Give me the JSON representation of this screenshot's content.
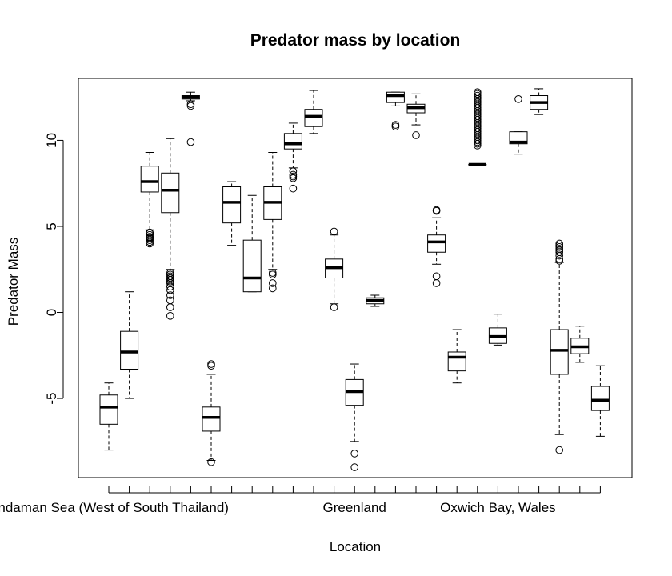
{
  "chart_data": {
    "type": "boxplot",
    "title": "Predator mass by location",
    "xlabel": "Location",
    "ylabel": "Predator Mass",
    "ylim": [
      -9.6,
      13.6
    ],
    "y_ticks": [
      -5,
      0,
      5,
      10
    ],
    "x_tick_labels": [
      {
        "index": 1,
        "label": "Andaman Sea (West of South Thailand)"
      },
      {
        "index": 13,
        "label": "Greenland"
      },
      {
        "index": 20,
        "label": "Oxwich Bay, Wales"
      }
    ],
    "boxes": [
      {
        "q1": -6.5,
        "median": -5.5,
        "q3": -4.8,
        "wlo": -8.0,
        "whi": -4.1,
        "outliers": []
      },
      {
        "q1": -3.3,
        "median": -2.3,
        "q3": -1.1,
        "wlo": -5.0,
        "whi": 1.2,
        "outliers": []
      },
      {
        "q1": 7.0,
        "median": 7.6,
        "q3": 8.5,
        "wlo": 4.8,
        "whi": 9.3,
        "outliers": [
          4.0,
          4.1,
          4.2,
          4.3,
          4.35,
          4.4,
          4.5,
          4.6,
          4.65
        ]
      },
      {
        "q1": 5.8,
        "median": 7.1,
        "q3": 8.1,
        "wlo": 2.5,
        "whi": 10.1,
        "outliers": [
          2.3,
          2.2,
          2.1,
          2.0,
          1.9,
          1.8,
          1.7,
          1.5,
          1.3,
          1.0,
          0.7,
          0.3,
          -0.2
        ]
      },
      {
        "q1": 12.4,
        "median": 12.5,
        "q3": 12.6,
        "wlo": 12.3,
        "whi": 12.8,
        "outliers": [
          12.1,
          12.0,
          9.9
        ]
      },
      {
        "q1": -6.9,
        "median": -6.1,
        "q3": -5.5,
        "wlo": -8.6,
        "whi": -3.6,
        "outliers": [
          -3.0,
          -3.1,
          -8.7
        ]
      },
      {
        "q1": 5.2,
        "median": 6.4,
        "q3": 7.3,
        "wlo": 3.9,
        "whi": 7.6,
        "outliers": []
      },
      {
        "q1": 1.2,
        "median": 2.0,
        "q3": 4.2,
        "wlo": 1.2,
        "whi": 6.8,
        "outliers": []
      },
      {
        "q1": 5.4,
        "median": 6.4,
        "q3": 7.3,
        "wlo": 2.5,
        "whi": 9.3,
        "outliers": [
          2.3,
          2.2,
          1.7,
          1.4
        ]
      },
      {
        "q1": 9.5,
        "median": 9.8,
        "q3": 10.4,
        "wlo": 8.4,
        "whi": 11.0,
        "outliers": [
          8.2,
          8.0,
          7.9,
          7.8,
          7.2
        ]
      },
      {
        "q1": 10.8,
        "median": 11.4,
        "q3": 11.8,
        "wlo": 10.4,
        "whi": 12.9,
        "outliers": []
      },
      {
        "q1": 2.0,
        "median": 2.6,
        "q3": 3.1,
        "wlo": 0.5,
        "whi": 4.5,
        "outliers": [
          4.7,
          0.3
        ]
      },
      {
        "q1": -5.4,
        "median": -4.6,
        "q3": -3.9,
        "wlo": -7.5,
        "whi": -3.0,
        "outliers": [
          -8.2,
          -9.0
        ]
      },
      {
        "q1": 0.5,
        "median": 0.7,
        "q3": 0.85,
        "wlo": 0.35,
        "whi": 1.0,
        "outliers": []
      },
      {
        "q1": 12.2,
        "median": 12.6,
        "q3": 12.8,
        "wlo": 12.0,
        "whi": 12.8,
        "outliers": [
          10.9,
          10.8
        ]
      },
      {
        "q1": 11.6,
        "median": 11.9,
        "q3": 12.1,
        "wlo": 10.9,
        "whi": 12.7,
        "outliers": [
          10.3
        ]
      },
      {
        "q1": 3.5,
        "median": 4.1,
        "q3": 4.5,
        "wlo": 2.8,
        "whi": 5.5,
        "outliers": [
          5.9,
          5.95,
          2.1,
          1.7
        ]
      },
      {
        "q1": -3.4,
        "median": -2.6,
        "q3": -2.3,
        "wlo": -4.1,
        "whi": -1.0,
        "outliers": []
      },
      {
        "q1": 8.6,
        "median": 8.6,
        "q3": 8.6,
        "wlo": 8.6,
        "whi": 8.6,
        "outliers": [
          9.7,
          9.8,
          9.9,
          10.0,
          10.1,
          10.2,
          10.3,
          10.4,
          10.5,
          10.6,
          10.7,
          10.8,
          10.9,
          11.0,
          11.1,
          11.2,
          11.3,
          11.4,
          11.5,
          11.6,
          11.7,
          11.8,
          11.9,
          12.0,
          12.1,
          12.2,
          12.3,
          12.4,
          12.5,
          12.6,
          12.7,
          12.8
        ]
      },
      {
        "q1": -1.8,
        "median": -1.4,
        "q3": -0.9,
        "wlo": -1.9,
        "whi": -0.1,
        "outliers": []
      },
      {
        "q1": 9.8,
        "median": 9.9,
        "q3": 10.5,
        "wlo": 9.2,
        "whi": 10.5,
        "outliers": [
          12.4
        ]
      },
      {
        "q1": 11.8,
        "median": 12.2,
        "q3": 12.6,
        "wlo": 11.5,
        "whi": 13.0,
        "outliers": []
      },
      {
        "q1": -3.6,
        "median": -2.2,
        "q3": -1.0,
        "wlo": -7.1,
        "whi": 2.9,
        "outliers": [
          3.0,
          3.1,
          3.3,
          3.5,
          3.6,
          3.7,
          3.8,
          3.9,
          4.0,
          -8.0
        ]
      },
      {
        "q1": -2.4,
        "median": -2.0,
        "q3": -1.5,
        "wlo": -2.9,
        "whi": -0.8,
        "outliers": []
      },
      {
        "q1": -5.7,
        "median": -5.1,
        "q3": -4.3,
        "wlo": -7.2,
        "whi": -3.1,
        "outliers": []
      }
    ]
  }
}
